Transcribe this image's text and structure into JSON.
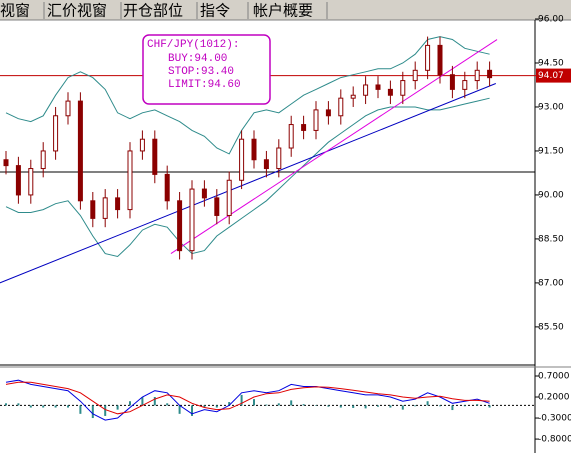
{
  "tabs": [
    "视窗",
    "汇价视窗",
    "开仓部位",
    "指令",
    "帐户概要"
  ],
  "chart_data": {
    "type": "candlestick",
    "annotations": [
      "CHF/JPY(1012):",
      "BUY:94.00",
      "STOP:93.40",
      "LIMIT:94.60"
    ],
    "ylim": [
      84.2,
      96.0
    ],
    "yticks": [
      {
        "value": 96.0,
        "label": "96.00"
      },
      {
        "value": 94.5,
        "label": "94.50"
      },
      {
        "value": 93.0,
        "label": "93.00"
      },
      {
        "value": 91.5,
        "label": "91.50"
      },
      {
        "value": 90.0,
        "label": "90.00"
      },
      {
        "value": 88.5,
        "label": "88.50"
      },
      {
        "value": 87.0,
        "label": "87.00"
      },
      {
        "value": 85.5,
        "label": "85.50"
      }
    ],
    "color": "#8b0000",
    "open": [
      91.2,
      91.0,
      90.0,
      90.9,
      91.5,
      92.7,
      93.2,
      89.8,
      89.2,
      89.9,
      89.5,
      91.5,
      91.9,
      90.7,
      89.8,
      88.1,
      90.2,
      89.9,
      89.3,
      90.5,
      91.9,
      91.2,
      90.9,
      91.6,
      92.4,
      92.2,
      92.9,
      92.7,
      93.3,
      93.4,
      93.75,
      93.6,
      93.4,
      93.9,
      94.25,
      95.1,
      94.1,
      93.6,
      93.9,
      94.25
    ],
    "high": [
      91.5,
      91.3,
      91.2,
      91.8,
      93.0,
      93.5,
      93.5,
      90.1,
      90.2,
      90.2,
      91.8,
      92.2,
      92.2,
      91.0,
      90.1,
      90.5,
      90.5,
      90.2,
      90.8,
      92.2,
      92.2,
      91.5,
      91.9,
      92.7,
      92.7,
      93.2,
      93.2,
      93.6,
      93.7,
      94.05,
      94.05,
      93.9,
      94.2,
      94.55,
      95.4,
      95.4,
      94.4,
      94.2,
      94.55,
      94.55
    ],
    "low": [
      90.7,
      89.7,
      89.7,
      90.6,
      91.2,
      92.4,
      89.5,
      88.9,
      88.9,
      89.2,
      89.2,
      91.2,
      90.4,
      89.5,
      87.8,
      87.8,
      89.6,
      89.0,
      89.0,
      90.2,
      90.9,
      90.6,
      90.6,
      91.3,
      91.9,
      91.9,
      92.4,
      92.4,
      93.0,
      93.1,
      93.3,
      93.1,
      93.1,
      93.6,
      93.95,
      93.8,
      93.3,
      93.3,
      93.6,
      93.7
    ],
    "close": [
      91.0,
      90.0,
      90.9,
      91.5,
      92.7,
      93.2,
      89.8,
      89.2,
      89.9,
      89.5,
      91.5,
      91.9,
      90.7,
      89.8,
      88.1,
      90.2,
      89.9,
      89.3,
      90.5,
      91.9,
      91.2,
      90.9,
      91.6,
      92.4,
      92.2,
      92.9,
      92.7,
      93.3,
      93.4,
      93.75,
      93.6,
      93.4,
      93.9,
      94.25,
      95.1,
      94.1,
      93.6,
      93.9,
      94.25,
      94.0
    ],
    "bands": {
      "color": "#2e8b8b",
      "upper": [
        92.8,
        92.6,
        92.5,
        92.7,
        93.4,
        94.0,
        94.2,
        94.0,
        93.6,
        92.8,
        92.6,
        92.8,
        92.9,
        92.7,
        92.5,
        92.2,
        92.0,
        91.6,
        91.4,
        92.2,
        92.8,
        92.9,
        92.8,
        93.1,
        93.4,
        93.6,
        93.8,
        94.0,
        94.1,
        94.2,
        94.3,
        94.3,
        94.5,
        94.8,
        95.3,
        95.4,
        95.3,
        95.0,
        94.9,
        94.8
      ],
      "lower": [
        89.6,
        89.4,
        89.4,
        89.5,
        89.7,
        89.8,
        89.3,
        88.6,
        88.0,
        87.9,
        88.3,
        88.8,
        89.0,
        88.9,
        88.4,
        88.0,
        88.1,
        88.6,
        88.9,
        89.2,
        89.5,
        89.8,
        90.2,
        90.6,
        91.0,
        91.4,
        91.8,
        92.1,
        92.4,
        92.7,
        92.9,
        93.0,
        93.0,
        93.0,
        92.9,
        92.9,
        93.0,
        93.1,
        93.2,
        93.3
      ]
    },
    "trendlines": [
      {
        "color": "#0000c0",
        "x": [
          -0.5,
          39.5
        ],
        "y": [
          87.0,
          93.8
        ]
      },
      {
        "color": "#e000e0",
        "x": [
          13.3,
          39.6
        ],
        "y": [
          88.0,
          95.3
        ]
      }
    ],
    "hlines": [
      {
        "value": 90.78,
        "color": "#000000"
      },
      {
        "value": 94.07,
        "label": "94.07",
        "color": "#c00000"
      }
    ],
    "macd": {
      "ylim": [
        -1.06,
        0.89
      ],
      "yticks": [
        {
          "value": 0.7,
          "label": "0.7000"
        },
        {
          "value": 0.2,
          "label": "0.2000"
        },
        {
          "value": -0.3,
          "label": "-0.3000"
        },
        {
          "value": -0.8,
          "label": "-0.8000"
        }
      ],
      "series": [
        {
          "color": "#0000e0",
          "values": [
            0.55,
            0.6,
            0.5,
            0.45,
            0.4,
            0.35,
            0.1,
            -0.2,
            -0.35,
            -0.3,
            -0.05,
            0.2,
            0.35,
            0.3,
            0.0,
            -0.2,
            -0.1,
            -0.15,
            0.0,
            0.3,
            0.35,
            0.3,
            0.35,
            0.5,
            0.45,
            0.45,
            0.4,
            0.35,
            0.3,
            0.25,
            0.25,
            0.2,
            0.1,
            0.15,
            0.3,
            0.2,
            0.05,
            0.1,
            0.15,
            0.05
          ]
        },
        {
          "color": "#e00000",
          "values": [
            0.5,
            0.55,
            0.55,
            0.5,
            0.45,
            0.4,
            0.3,
            0.1,
            -0.1,
            -0.2,
            -0.15,
            0.0,
            0.15,
            0.25,
            0.2,
            0.05,
            -0.05,
            -0.1,
            -0.08,
            0.05,
            0.2,
            0.28,
            0.3,
            0.38,
            0.42,
            0.44,
            0.43,
            0.4,
            0.36,
            0.32,
            0.28,
            0.25,
            0.2,
            0.17,
            0.2,
            0.22,
            0.16,
            0.12,
            0.12,
            0.1
          ]
        }
      ],
      "hist": {
        "color": "#2e8b8b",
        "values": [
          0.05,
          0.05,
          -0.05,
          -0.05,
          -0.05,
          -0.05,
          -0.2,
          -0.3,
          -0.25,
          -0.1,
          0.1,
          0.2,
          0.2,
          0.05,
          -0.2,
          -0.25,
          -0.05,
          -0.05,
          0.08,
          0.25,
          0.15,
          0.02,
          0.05,
          0.12,
          0.03,
          0.01,
          -0.03,
          -0.05,
          -0.06,
          -0.07,
          -0.03,
          -0.05,
          -0.1,
          -0.02,
          0.1,
          -0.02,
          -0.11,
          -0.02,
          0.03,
          -0.05
        ]
      }
    }
  }
}
